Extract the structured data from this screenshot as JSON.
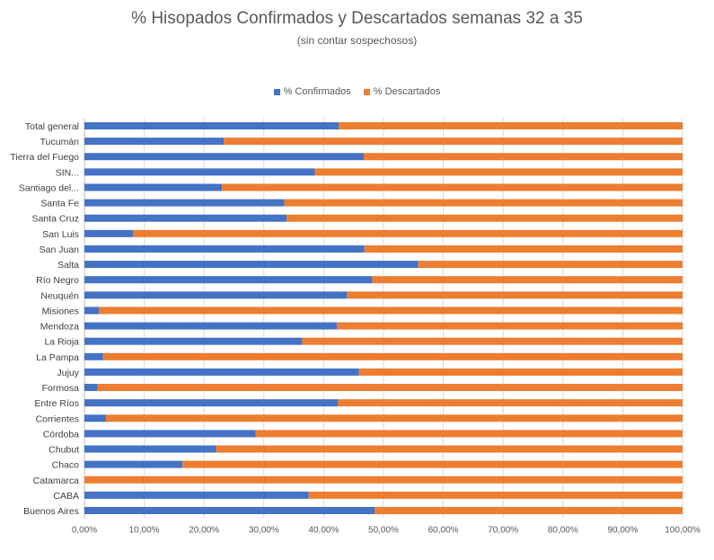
{
  "chart_data": {
    "type": "bar",
    "orientation": "horizontal",
    "stacked": true,
    "title": "% Hisopados  Confirmados y Descartados semanas 32 a 35",
    "subtitle": "(sin contar sospechosos)",
    "legend_position": "top",
    "grid": true,
    "xlim": [
      0,
      100
    ],
    "x_ticks": [
      "0,00%",
      "10,00%",
      "20,00%",
      "30,00%",
      "40,00%",
      "50,00%",
      "60,00%",
      "70,00%",
      "80,00%",
      "90,00%",
      "100,00%"
    ],
    "categories": [
      "Total general",
      "Tucumán",
      "Tierra del Fuego",
      "SIN...",
      "Santiago del...",
      "Santa Fe",
      "Santa Cruz",
      "San Luis",
      "San Juan",
      "Salta",
      "Río Negro",
      "Neuquén",
      "Misiones",
      "Mendoza",
      "La Rioja",
      "La Pampa",
      "Jujuy",
      "Formosa",
      "Entre Ríos",
      "Corrientes",
      "Córdoba",
      "Chubut",
      "Chaco",
      "Catamarca",
      "CABA",
      "Buenos Aires"
    ],
    "series": [
      {
        "name": "% Confirmados",
        "color": "#4472C4",
        "values": [
          42.5,
          23.3,
          46.7,
          38.5,
          23.0,
          33.4,
          33.8,
          8.1,
          46.8,
          55.8,
          48.1,
          43.9,
          2.4,
          42.2,
          36.4,
          3.1,
          45.9,
          2.2,
          42.4,
          3.6,
          28.6,
          22.0,
          16.4,
          0.0,
          37.5,
          48.5
        ]
      },
      {
        "name": "% Descartados",
        "color": "#ED7D31",
        "values": [
          57.5,
          76.7,
          53.3,
          61.5,
          77.0,
          66.6,
          66.2,
          91.9,
          53.2,
          44.2,
          51.9,
          56.1,
          97.6,
          57.8,
          63.6,
          96.9,
          54.1,
          97.8,
          57.6,
          96.4,
          71.4,
          78.0,
          83.6,
          100.0,
          62.5,
          51.5
        ]
      }
    ]
  }
}
